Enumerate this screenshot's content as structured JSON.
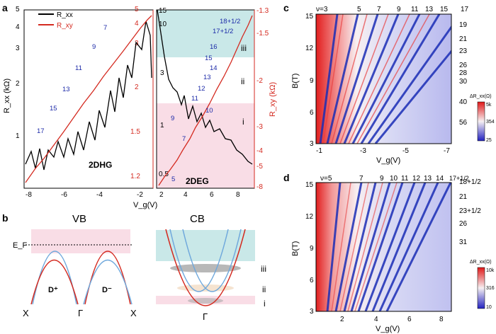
{
  "colors": {
    "black_curve": "#000000",
    "red_curve": "#d42a20",
    "level_blue": "#1c2aa8",
    "pink_band": "#f9dde6",
    "teal_band": "#c9e8e8",
    "colorbar_high": "#e01818",
    "colorbar_low": "#2222c0"
  },
  "panels": {
    "a": "a",
    "b": "b",
    "c": "c",
    "d": "d"
  },
  "panel_a": {
    "legend": [
      "R_xx",
      "R_xy"
    ],
    "sample_left": "2DHG",
    "sample_right": "2DEG",
    "ylabel_left": "R_xx (kΩ)",
    "ylabel_right": "R_xy (kΩ)",
    "xlabel": "V_g(V)",
    "left_y_ticks": [
      "5",
      "4",
      "3",
      "2",
      "1"
    ],
    "left_red_ticks": [
      "5",
      "4",
      "3",
      "2",
      "1.5",
      "1.2"
    ],
    "mid_y_ticks": [
      "15",
      "10",
      "3",
      "1",
      "0.5"
    ],
    "right_red_ticks": [
      "-1.3",
      "-1.5",
      "-2",
      "-3",
      "-4",
      "-5",
      "-8"
    ],
    "x_ticks_left": [
      "-8",
      "-6",
      "-4",
      "-2"
    ],
    "x_ticks_right": [
      "2",
      "4",
      "6",
      "8"
    ],
    "hole_levels": [
      "7",
      "9",
      "11",
      "13",
      "15",
      "17"
    ],
    "electron_levels": [
      "18+1/2",
      "17+1/2",
      "16",
      "15",
      "14",
      "13",
      "12",
      "11",
      "10",
      "9",
      "7",
      "5"
    ],
    "regions": [
      "iii",
      "ii",
      "i"
    ]
  },
  "panel_b": {
    "title_vb": "VB",
    "title_cb": "CB",
    "fermi": "E_F",
    "dplus": "D⁺",
    "dminus": "D⁻",
    "k_labels": [
      "X",
      "Γ",
      "X"
    ],
    "k_cb": "Γ",
    "regions": [
      "iii",
      "ii",
      "i"
    ]
  },
  "panel_c": {
    "nu_labels": [
      "ν=3",
      "5",
      "7",
      "9",
      "11",
      "13",
      "15",
      "17"
    ],
    "right_labels": [
      "19",
      "21",
      "23",
      "26",
      "28",
      "30",
      "40",
      "56"
    ],
    "y_ticks": [
      "15",
      "12",
      "9",
      "6",
      "3"
    ],
    "x_ticks": [
      "-1",
      "-3",
      "-5",
      "-7"
    ],
    "ylabel": "B(T)",
    "xlabel": "V_g(V)",
    "cbar_title": "ΔR_xx(Ω)",
    "cbar_ticks": [
      "5k",
      "354",
      "25"
    ]
  },
  "panel_d": {
    "nu_labels": [
      "ν=5",
      "7",
      "9",
      "10",
      "11",
      "12",
      "13",
      "14",
      "17+1/2"
    ],
    "right_labels": [
      "18+1/2",
      "21",
      "23+1/2",
      "26",
      "31"
    ],
    "y_ticks": [
      "15",
      "12",
      "9",
      "6",
      "3"
    ],
    "x_ticks": [
      "2",
      "4",
      "6",
      "8"
    ],
    "ylabel": "B(T)",
    "xlabel": "V_g(V)",
    "cbar_title": "ΔR_xx(Ω)",
    "cbar_ticks": [
      "10k",
      "316",
      "10"
    ]
  }
}
